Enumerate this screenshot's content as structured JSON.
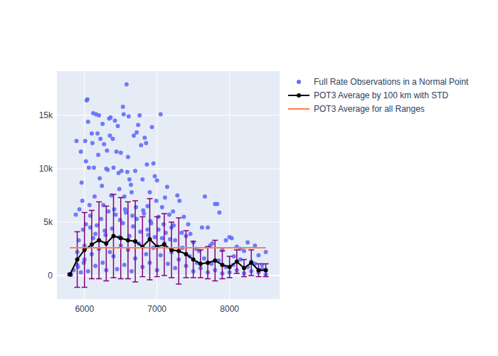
{
  "chart_data": {
    "type": "scatter",
    "xlim": [
      5620,
      8690
    ],
    "ylim": [
      -2200,
      19130
    ],
    "xticks": [
      6000,
      7000,
      8000
    ],
    "yticks": [
      0,
      {
        "value": 5000,
        "label": "5k"
      },
      {
        "value": 10000,
        "label": "10k"
      },
      {
        "value": 15000,
        "label": "15k"
      }
    ],
    "grid": true,
    "legend": "outside-right",
    "series": [
      {
        "name": "Full Rate Observations in a Normal Point",
        "type": "scatter",
        "marker": "circle",
        "color": "#636efa",
        "x": [
          5800,
          5810,
          5880,
          5890,
          5900,
          5910,
          5920,
          5930,
          5950,
          5960,
          5970,
          5980,
          5990,
          6000,
          6010,
          6020,
          6030,
          6040,
          6050,
          6060,
          6070,
          6080,
          6100,
          6110,
          6120,
          6130,
          6140,
          6150,
          6160,
          6180,
          6190,
          6200,
          6210,
          6220,
          6240,
          6250,
          6260,
          6270,
          6280,
          6300,
          6310,
          6320,
          6340,
          6350,
          6360,
          6370,
          6390,
          6400,
          6410,
          6420,
          6440,
          6460,
          6470,
          6480,
          6490,
          6500,
          6510,
          6530,
          6540,
          6550,
          6560,
          6580,
          6590,
          6600,
          6610,
          6620,
          6640,
          6650,
          6660,
          6680,
          6700,
          6710,
          6720,
          6740,
          6760,
          6780,
          6800,
          6810,
          6830,
          6850,
          6860,
          6870,
          6880,
          6900,
          6910,
          6930,
          6950,
          6970,
          6990,
          7000,
          7020,
          7050,
          7070,
          7090,
          7110,
          7140,
          7170,
          7200,
          7220,
          7250,
          7280,
          7310,
          7340,
          7370,
          7400,
          7430,
          7460,
          7500,
          7540,
          7580,
          7620,
          7660,
          7700,
          7730,
          7760,
          7800,
          7830,
          7860,
          7900,
          7950,
          8000,
          8030,
          8060,
          8100,
          8150,
          8200,
          8250,
          8300,
          8350,
          8400,
          8450,
          8500,
          5850,
          5900,
          5950,
          6000,
          6050,
          6100,
          6150,
          6200,
          6250,
          6300,
          6350,
          6400,
          6450,
          6500,
          6550,
          6600,
          6650,
          6700,
          6750,
          6800,
          6850,
          6900,
          6950,
          7000,
          7050,
          7100,
          7150,
          7200,
          7250,
          7300,
          7350,
          7400,
          7450,
          7500,
          7550,
          7600,
          7650,
          7700,
          7750,
          7800,
          7850,
          7900,
          7950,
          8000,
          8050,
          8100,
          8150,
          8200,
          8250,
          8300,
          8350,
          8400,
          8450,
          8500,
          6020,
          6080,
          6120,
          6170,
          6230,
          6290,
          6330,
          6380,
          6430,
          6480,
          6530,
          6570,
          6620,
          6670,
          6720,
          6770,
          6820,
          6870,
          6920,
          6970,
          7020,
          7070,
          7120,
          7180,
          7230
        ],
        "values": [
          150,
          50,
          5700,
          12600,
          2200,
          800,
          3300,
          6200,
          11600,
          8700,
          7000,
          4300,
          1200,
          2800,
          12600,
          10700,
          16400,
          16500,
          14400,
          10100,
          6600,
          4500,
          13300,
          12400,
          15200,
          10100,
          7400,
          3900,
          15100,
          13300,
          11300,
          15000,
          9100,
          12800,
          8400,
          14200,
          6600,
          12300,
          4200,
          10000,
          11700,
          9900,
          14700,
          13100,
          14800,
          7500,
          12800,
          10100,
          6200,
          14500,
          11600,
          14000,
          9600,
          8100,
          5200,
          11500,
          9800,
          15800,
          15100,
          7400,
          6200,
          17900,
          9700,
          11100,
          14900,
          9000,
          8500,
          7800,
          5600,
          13100,
          9800,
          6400,
          13400,
          14100,
          15000,
          12200,
          9000,
          6100,
          12900,
          12400,
          10400,
          6500,
          3800,
          7800,
          5100,
          13900,
          10500,
          9300,
          7000,
          8900,
          5500,
          15100,
          6400,
          4800,
          7300,
          8300,
          5700,
          4500,
          6000,
          3300,
          7500,
          7000,
          4000,
          5500,
          3700,
          4800,
          3900,
          3100,
          2500,
          2300,
          4500,
          7400,
          4500,
          2800,
          3000,
          6700,
          6700,
          5900,
          2400,
          3300,
          3600,
          3500,
          1800,
          2700,
          2500,
          2300,
          3100,
          1300,
          2800,
          1900,
          1000,
          2200,
          500,
          1000,
          300,
          1500,
          400,
          2000,
          900,
          2500,
          1200,
          500,
          2200,
          1800,
          600,
          2800,
          1000,
          2400,
          400,
          1600,
          3000,
          800,
          2000,
          1200,
          2600,
          500,
          1900,
          3000,
          1100,
          2200,
          700,
          1500,
          2600,
          900,
          1800,
          400,
          1200,
          700,
          1600,
          300,
          1100,
          500,
          1400,
          200,
          800,
          300,
          1000,
          500,
          1500,
          200,
          800,
          400,
          1100,
          300,
          600,
          100,
          4800,
          5600,
          3500,
          4700,
          5300,
          3800,
          6000,
          4400,
          5700,
          3600,
          4900,
          5900,
          3700,
          4600,
          5300,
          4100,
          5800,
          4300,
          4900,
          3600,
          4300,
          3500,
          4000,
          3400,
          4700
        ]
      },
      {
        "name": "POT3 Average by 100 km with STD",
        "type": "line",
        "marker": "circle",
        "color": "#000000",
        "x": [
          5800,
          5900,
          6000,
          6100,
          6200,
          6300,
          6400,
          6500,
          6600,
          6700,
          6800,
          6900,
          7000,
          7100,
          7200,
          7300,
          7400,
          7500,
          7600,
          7700,
          7800,
          7900,
          8000,
          8100,
          8200,
          8300,
          8400,
          8500
        ],
        "values": [
          100,
          1500,
          2400,
          2900,
          3300,
          3000,
          3700,
          3500,
          3300,
          3200,
          2700,
          3400,
          2700,
          2900,
          2400,
          2300,
          2000,
          1500,
          1100,
          1200,
          1400,
          1000,
          800,
          1300,
          700,
          1200,
          500,
          500
        ],
        "error": [
          100,
          2600,
          3500,
          3200,
          3600,
          3500,
          3900,
          3800,
          3600,
          3800,
          2800,
          3800,
          2800,
          2900,
          2600,
          3100,
          2200,
          1700,
          1300,
          1500,
          1900,
          1300,
          1000,
          1100,
          800,
          1200,
          600,
          600
        ]
      },
      {
        "name": "POT3 Average for all Ranges",
        "type": "line",
        "color": "#ff7f50",
        "x": [
          5800,
          8500
        ],
        "values": [
          2600,
          2600
        ]
      }
    ]
  }
}
